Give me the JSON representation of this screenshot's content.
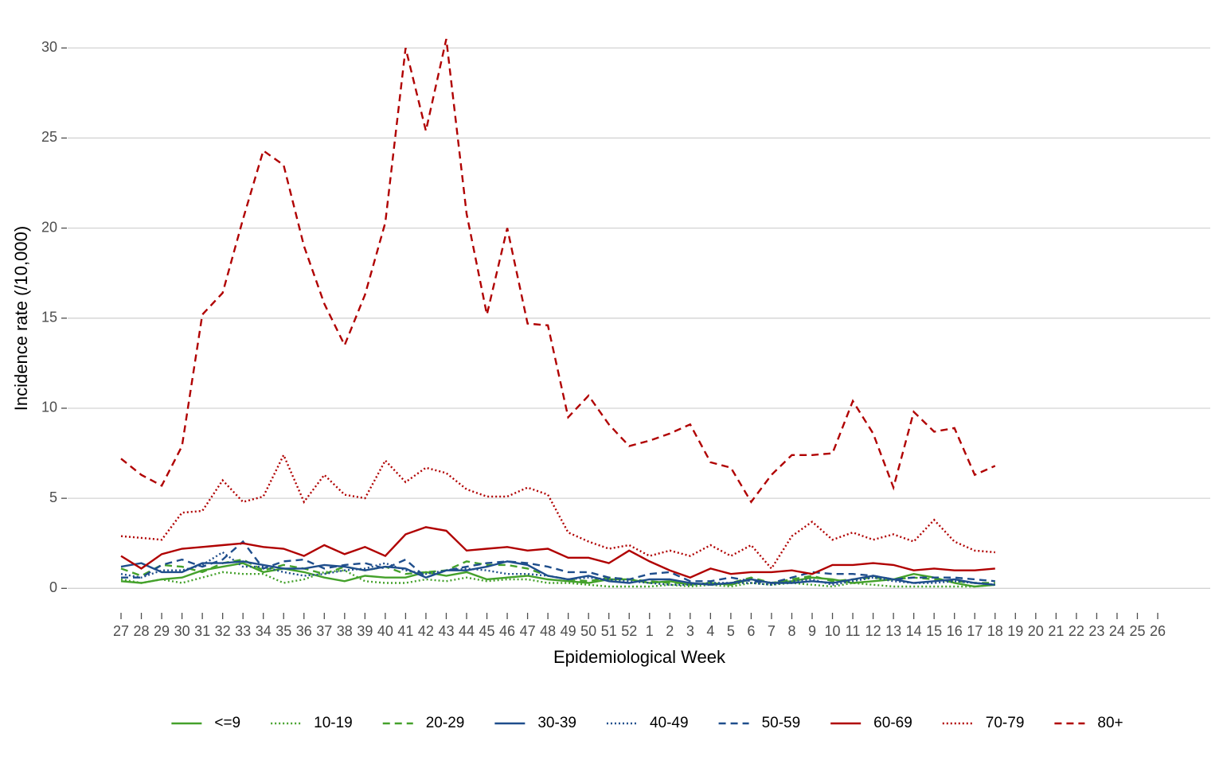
{
  "chart_data": {
    "type": "line",
    "x_label": "Epidemiological Week",
    "y_label": "Incidence rate (/10,000)",
    "categories": [
      "27",
      "28",
      "29",
      "30",
      "31",
      "32",
      "33",
      "34",
      "35",
      "36",
      "37",
      "38",
      "39",
      "40",
      "41",
      "42",
      "43",
      "44",
      "45",
      "46",
      "47",
      "48",
      "49",
      "50",
      "51",
      "52",
      "1",
      "2",
      "3",
      "4",
      "5",
      "6",
      "7",
      "8",
      "9",
      "10",
      "11",
      "12",
      "13",
      "14",
      "15",
      "16",
      "17",
      "18",
      "19",
      "20",
      "21",
      "22",
      "23",
      "24",
      "25",
      "26"
    ],
    "ylim": [
      -1.4,
      32
    ],
    "yticks": [
      0,
      5,
      10,
      15,
      20,
      25,
      30
    ],
    "grid": true,
    "legend": "bottom",
    "series": [
      {
        "name": "<=9",
        "color": "#44a12b",
        "dash": "solid",
        "values": [
          0.4,
          0.3,
          0.5,
          0.6,
          1.0,
          1.2,
          1.4,
          0.9,
          1.1,
          0.9,
          0.6,
          0.4,
          0.7,
          0.6,
          0.6,
          0.9,
          0.7,
          0.9,
          0.5,
          0.6,
          0.7,
          0.5,
          0.4,
          0.3,
          0.5,
          0.5,
          0.3,
          0.4,
          0.2,
          0.3,
          0.2,
          0.5,
          0.3,
          0.4,
          0.6,
          0.5,
          0.3,
          0.4,
          0.5,
          0.8,
          0.6,
          0.3,
          0.1,
          0.2,
          null,
          null,
          null,
          null,
          null,
          null,
          null,
          null
        ]
      },
      {
        "name": "10-19",
        "color": "#44a12b",
        "dash": "dotted",
        "values": [
          0.5,
          0.3,
          0.5,
          0.3,
          0.6,
          0.9,
          0.8,
          0.8,
          0.3,
          0.5,
          0.9,
          1.0,
          0.4,
          0.3,
          0.3,
          0.5,
          0.4,
          0.6,
          0.4,
          0.5,
          0.5,
          0.3,
          0.3,
          0.2,
          0.1,
          0.1,
          0.1,
          0.2,
          0.1,
          0.2,
          0.1,
          0.3,
          0.2,
          0.3,
          0.2,
          0.1,
          0.3,
          0.2,
          0.1,
          0.1,
          0.1,
          0.1,
          0.1,
          0.2,
          null,
          null,
          null,
          null,
          null,
          null,
          null,
          null
        ]
      },
      {
        "name": "20-29",
        "color": "#44a12b",
        "dash": "dashed",
        "values": [
          1.1,
          0.7,
          1.3,
          1.2,
          0.9,
          1.4,
          1.6,
          1.0,
          1.3,
          1.1,
          0.8,
          1.2,
          1.0,
          1.2,
          0.8,
          0.9,
          1.0,
          1.5,
          1.3,
          1.3,
          1.1,
          0.7,
          0.5,
          0.4,
          0.6,
          0.5,
          0.4,
          0.3,
          0.3,
          0.2,
          0.3,
          0.6,
          0.3,
          0.5,
          0.7,
          0.4,
          0.5,
          0.6,
          0.5,
          0.6,
          0.5,
          0.4,
          0.3,
          0.3,
          null,
          null,
          null,
          null,
          null,
          null,
          null,
          null
        ]
      },
      {
        "name": "30-39",
        "color": "#1f4e8c",
        "dash": "solid",
        "values": [
          1.2,
          1.4,
          0.9,
          0.9,
          1.4,
          1.4,
          1.5,
          1.3,
          1.1,
          1.1,
          1.3,
          1.2,
          1.0,
          1.2,
          1.1,
          0.6,
          1.0,
          1.0,
          1.2,
          1.5,
          1.3,
          0.7,
          0.5,
          0.7,
          0.4,
          0.3,
          0.5,
          0.5,
          0.3,
          0.2,
          0.3,
          0.5,
          0.3,
          0.3,
          0.4,
          0.3,
          0.5,
          0.7,
          0.5,
          0.3,
          0.4,
          0.5,
          0.3,
          0.2,
          null,
          null,
          null,
          null,
          null,
          null,
          null,
          null
        ]
      },
      {
        "name": "40-49",
        "color": "#1f4e8c",
        "dash": "dotted",
        "values": [
          0.8,
          0.6,
          1.0,
          1.0,
          1.3,
          2.0,
          1.2,
          1.2,
          0.9,
          0.7,
          0.8,
          1.0,
          1.1,
          1.4,
          1.0,
          0.8,
          1.0,
          1.1,
          1.0,
          0.8,
          0.8,
          0.7,
          0.5,
          0.6,
          0.5,
          0.4,
          0.3,
          0.2,
          0.2,
          0.3,
          0.3,
          0.3,
          0.2,
          0.4,
          0.5,
          0.2,
          0.4,
          0.6,
          0.4,
          0.3,
          0.3,
          0.4,
          0.3,
          0.2,
          null,
          null,
          null,
          null,
          null,
          null,
          null,
          null
        ]
      },
      {
        "name": "50-59",
        "color": "#1f4e8c",
        "dash": "dashed",
        "values": [
          0.6,
          0.6,
          1.3,
          1.6,
          1.2,
          1.6,
          2.6,
          1.1,
          1.5,
          1.6,
          1.1,
          1.3,
          1.4,
          1.1,
          1.6,
          0.6,
          1.0,
          1.2,
          1.4,
          1.5,
          1.4,
          1.2,
          0.9,
          0.9,
          0.6,
          0.5,
          0.8,
          0.9,
          0.4,
          0.4,
          0.6,
          0.4,
          0.3,
          0.6,
          0.9,
          0.8,
          0.8,
          0.7,
          0.5,
          0.6,
          0.6,
          0.6,
          0.5,
          0.4,
          null,
          null,
          null,
          null,
          null,
          null,
          null,
          null
        ]
      },
      {
        "name": "60-69",
        "color": "#b00000",
        "dash": "solid",
        "values": [
          1.8,
          1.1,
          1.9,
          2.2,
          2.3,
          2.4,
          2.5,
          2.3,
          2.2,
          1.8,
          2.4,
          1.9,
          2.3,
          1.8,
          3.0,
          3.4,
          3.2,
          2.1,
          2.2,
          2.3,
          2.1,
          2.2,
          1.7,
          1.7,
          1.4,
          2.1,
          1.5,
          1.0,
          0.6,
          1.1,
          0.8,
          0.9,
          0.9,
          1.0,
          0.8,
          1.3,
          1.3,
          1.4,
          1.3,
          1.0,
          1.1,
          1.0,
          1.0,
          1.1,
          null,
          null,
          null,
          null,
          null,
          null,
          null,
          null
        ]
      },
      {
        "name": "70-79",
        "color": "#b00000",
        "dash": "dotted",
        "values": [
          2.9,
          2.8,
          2.7,
          4.2,
          4.3,
          6.0,
          4.8,
          5.1,
          7.4,
          4.8,
          6.3,
          5.2,
          5.0,
          7.1,
          5.9,
          6.7,
          6.4,
          5.5,
          5.1,
          5.1,
          5.6,
          5.2,
          3.1,
          2.6,
          2.2,
          2.4,
          1.8,
          2.1,
          1.8,
          2.4,
          1.8,
          2.4,
          1.1,
          2.9,
          3.7,
          2.7,
          3.1,
          2.7,
          3.0,
          2.6,
          3.8,
          2.6,
          2.1,
          2.0,
          null,
          null,
          null,
          null,
          null,
          null,
          null,
          null
        ]
      },
      {
        "name": "80+",
        "color": "#b00000",
        "dash": "dashed",
        "values": [
          7.2,
          6.3,
          5.7,
          7.9,
          15.2,
          16.4,
          20.5,
          24.3,
          23.5,
          19.0,
          15.8,
          13.5,
          16.3,
          20.3,
          30.0,
          25.4,
          30.5,
          20.8,
          15.2,
          20.0,
          14.7,
          14.6,
          9.5,
          10.7,
          9.1,
          7.9,
          8.2,
          8.6,
          9.1,
          7.0,
          6.7,
          4.8,
          6.3,
          7.4,
          7.4,
          7.5,
          10.4,
          8.6,
          5.6,
          9.8,
          8.7,
          8.9,
          6.3,
          6.8,
          null,
          null,
          null,
          null,
          null,
          null,
          null,
          null
        ]
      }
    ]
  }
}
